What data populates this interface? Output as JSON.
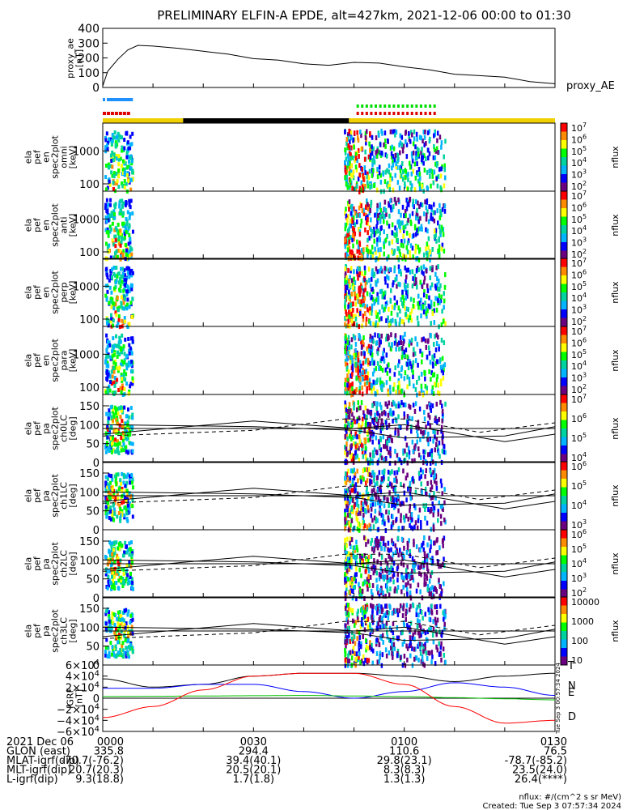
{
  "title": "PRELIMINARY ELFIN-A EPDE, alt=427km, 2021-12-06 00:00 to 01:30",
  "proxy_ae": {
    "ylabel": [
      "proxy_ae",
      "[nT]"
    ],
    "legend": "proxy_AE",
    "yticks": [
      "400",
      "300",
      "200",
      "100",
      "0"
    ],
    "ylim": [
      0,
      400
    ],
    "x_minutes": [
      0,
      1,
      3,
      5,
      7,
      10,
      15,
      20,
      25,
      30,
      35,
      40,
      45,
      50,
      55,
      60,
      65,
      70,
      75,
      80,
      85,
      90
    ],
    "values": [
      10,
      110,
      190,
      255,
      285,
      280,
      265,
      245,
      225,
      195,
      185,
      160,
      150,
      170,
      165,
      140,
      120,
      90,
      80,
      70,
      40,
      25
    ]
  },
  "energy_panels": [
    {
      "ylabel": [
        "ela",
        "pef",
        "en",
        "spec2plot",
        "omni",
        "[keV]"
      ],
      "yticks": [
        "1000",
        "100"
      ],
      "cbar_label": "nflux",
      "cbar_ticks": [
        "10^7",
        "10^6",
        "10^5",
        "10^4",
        "10^3",
        "10^2"
      ]
    },
    {
      "ylabel": [
        "ela",
        "pef",
        "en",
        "spec2plot",
        "anti",
        "[keV]"
      ],
      "yticks": [
        "1000",
        "100"
      ],
      "cbar_label": "nflux",
      "cbar_ticks": [
        "10^7",
        "10^6",
        "10^5",
        "10^4",
        "10^3",
        "10^2"
      ]
    },
    {
      "ylabel": [
        "ela",
        "pef",
        "en",
        "spec2plot",
        "perp",
        "[keV]"
      ],
      "yticks": [
        "1000",
        "100"
      ],
      "cbar_label": "nflux",
      "cbar_ticks": [
        "10^7",
        "10^6",
        "10^5",
        "10^4",
        "10^3",
        "10^2"
      ]
    },
    {
      "ylabel": [
        "ela",
        "pef",
        "en",
        "spec2plot",
        "para",
        "[keV]"
      ],
      "yticks": [
        "1000",
        "100"
      ],
      "cbar_label": "nflux",
      "cbar_ticks": [
        "10^7",
        "10^6",
        "10^5",
        "10^4",
        "10^3",
        "10^2"
      ]
    }
  ],
  "pitch_panels": [
    {
      "ylabel": [
        "ela",
        "pef",
        "pa",
        "spec2plot",
        "ch0LC",
        "[deg]"
      ],
      "yticks": [
        "150",
        "100",
        "50",
        "0"
      ],
      "cbar_label": "nflux",
      "cbar_ticks": [
        "10^7",
        "10^6",
        "10^5",
        "10^4"
      ]
    },
    {
      "ylabel": [
        "ela",
        "pef",
        "pa",
        "spec2plot",
        "ch1LC",
        "[deg]"
      ],
      "yticks": [
        "150",
        "100",
        "50",
        "0"
      ],
      "cbar_label": "nflux",
      "cbar_ticks": [
        "10^6",
        "10^5",
        "10^4",
        "10^3"
      ]
    },
    {
      "ylabel": [
        "ela",
        "pef",
        "pa",
        "spec2plot",
        "ch2LC",
        "[deg]"
      ],
      "yticks": [
        "150",
        "100",
        "50",
        "0"
      ],
      "cbar_label": "nflux",
      "cbar_ticks": [
        "10^6",
        "10^5",
        "10^4",
        "10^3",
        "10^2"
      ]
    },
    {
      "ylabel": [
        "ela",
        "pef",
        "pa",
        "spec2plot",
        "ch3LC",
        "[deg]"
      ],
      "yticks": [
        "150",
        "100",
        "50",
        "0"
      ],
      "cbar_label": "nflux",
      "cbar_ticks": [
        "10000",
        "1000",
        "100",
        "10"
      ]
    }
  ],
  "bfield": {
    "ylabel": [
      "IGRF",
      "[nT]"
    ],
    "yticks": [
      "6×10^4",
      "4×10^4",
      "2×10^4",
      "0",
      "−2×10^4",
      "−4×10^4",
      "−6×10^4"
    ],
    "ylim": [
      -60000,
      60000
    ],
    "legend": [
      "T",
      "N",
      "E",
      "D"
    ],
    "colors": {
      "T": "#000000",
      "N": "#0000ff",
      "E": "#00c000",
      "D": "#ff0000"
    },
    "side_note": "Tue Sep  3 00:57:34 2024",
    "x_minutes": [
      0,
      10,
      20,
      30,
      40,
      50,
      60,
      70,
      80,
      90
    ],
    "T": [
      35000,
      20000,
      25000,
      40000,
      45000,
      45000,
      40000,
      30000,
      40000,
      45000
    ],
    "N": [
      18000,
      18000,
      25000,
      25000,
      12000,
      0,
      12000,
      28000,
      20000,
      5000
    ],
    "E": [
      3000,
      3500,
      4000,
      4500,
      5000,
      4000,
      3000,
      1000,
      -1000,
      -3000
    ],
    "D": [
      -35000,
      -15000,
      15000,
      40000,
      45000,
      45000,
      25000,
      -15000,
      -45000,
      -40000
    ]
  },
  "footer": {
    "rows": [
      {
        "label": "2021 Dec 06",
        "values": [
          "0000",
          "0030",
          "0100",
          "0130"
        ]
      },
      {
        "label": "GLON (east)",
        "values": [
          "335.8",
          "294.4",
          "110.6",
          "76.5"
        ]
      },
      {
        "label": "MLAT-igrf(dip)",
        "values": [
          "-70.7(-76.2)",
          "39.4(40.1)",
          "29.8(23.1)",
          "-78.7(-85.2)"
        ]
      },
      {
        "label": "MLT-igrf(dip)",
        "values": [
          "20.7(20.3)",
          "20.5(20.1)",
          "8.3(8.3)",
          "23.5(24.0)"
        ]
      },
      {
        "label": "L-igrf(dip)",
        "values": [
          "9.3(18.8)",
          "1.7(1.8)",
          "1.3(1.3)",
          "26.4(****)"
        ]
      }
    ],
    "units": "nflux: #/(cm^2 s sr MeV)",
    "created": "Created: Tue Sep  3 07:57:34 2024"
  },
  "chart_data": {
    "type": "heatmap",
    "title": "PRELIMINARY ELFIN-A EPDE, alt=427km, 2021-12-06 00:00 to 01:30",
    "x_ticks": [
      "0000",
      "0030",
      "0100",
      "0130"
    ],
    "x_range_minutes": [
      0,
      90
    ],
    "science_intervals_minutes": [
      [
        0,
        6
      ],
      [
        50,
        68
      ]
    ],
    "orbit_bar": [
      {
        "start": 0,
        "end": 16,
        "color": "#f0d000"
      },
      {
        "start": 16,
        "end": 49,
        "color": "#000000"
      },
      {
        "start": 49,
        "end": 90,
        "color": "#f0d000"
      }
    ],
    "energy_range_keV": [
      60,
      7000
    ],
    "pitch_range_deg": [
      0,
      180
    ],
    "colorscale": [
      "#ffffff",
      "#6a0080",
      "#0000ff",
      "#00b4ff",
      "#00d2a0",
      "#00ff00",
      "#ffff00",
      "#ff8c00",
      "#ff0000"
    ],
    "grid": false
  }
}
